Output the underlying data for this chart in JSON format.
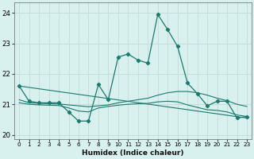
{
  "title": "",
  "xlabel": "Humidex (Indice chaleur)",
  "ylabel": "",
  "bg_color": "#d8f0ee",
  "grid_color": "#c8dcda",
  "line_color": "#1a7a6e",
  "ylim": [
    19.85,
    24.35
  ],
  "xlim": [
    -0.5,
    23.5
  ],
  "yticks": [
    20,
    21,
    22,
    23,
    24
  ],
  "xticks": [
    0,
    1,
    2,
    3,
    4,
    5,
    6,
    7,
    8,
    9,
    10,
    11,
    12,
    13,
    14,
    15,
    16,
    17,
    18,
    19,
    20,
    21,
    22,
    23
  ],
  "main_x": [
    0,
    1,
    2,
    3,
    4,
    5,
    6,
    7,
    8,
    9,
    10,
    11,
    12,
    13,
    14,
    15,
    16,
    17,
    18,
    19,
    20,
    21,
    22,
    23
  ],
  "main_y": [
    21.6,
    21.1,
    21.05,
    21.05,
    21.05,
    20.75,
    20.45,
    20.45,
    21.65,
    21.15,
    22.55,
    22.65,
    22.45,
    22.35,
    23.95,
    23.45,
    22.9,
    21.7,
    21.35,
    20.95,
    21.1,
    21.1,
    20.55,
    20.6
  ],
  "line2_x": [
    0,
    1,
    2,
    3,
    4,
    5,
    6,
    7,
    8,
    9,
    10,
    11,
    12,
    13,
    14,
    15,
    16,
    17,
    18,
    19,
    20,
    21,
    22,
    23
  ],
  "line2_y": [
    21.15,
    21.05,
    21.03,
    21.02,
    21.01,
    20.98,
    20.95,
    20.92,
    20.95,
    20.98,
    21.05,
    21.1,
    21.15,
    21.2,
    21.3,
    21.38,
    21.42,
    21.42,
    21.38,
    21.3,
    21.2,
    21.12,
    21.0,
    20.93
  ],
  "line3_x": [
    0,
    1,
    2,
    3,
    4,
    5,
    6,
    7,
    8,
    9,
    10,
    11,
    12,
    13,
    14,
    15,
    16,
    17,
    18,
    19,
    20,
    21,
    22,
    23
  ],
  "line3_y": [
    21.05,
    21.0,
    20.98,
    20.97,
    20.96,
    20.88,
    20.78,
    20.75,
    20.88,
    20.93,
    20.97,
    21.0,
    21.02,
    21.03,
    21.08,
    21.1,
    21.08,
    20.98,
    20.9,
    20.82,
    20.8,
    20.75,
    20.65,
    20.6
  ],
  "line4_x": [
    0,
    23
  ],
  "line4_y": [
    21.6,
    20.55
  ]
}
